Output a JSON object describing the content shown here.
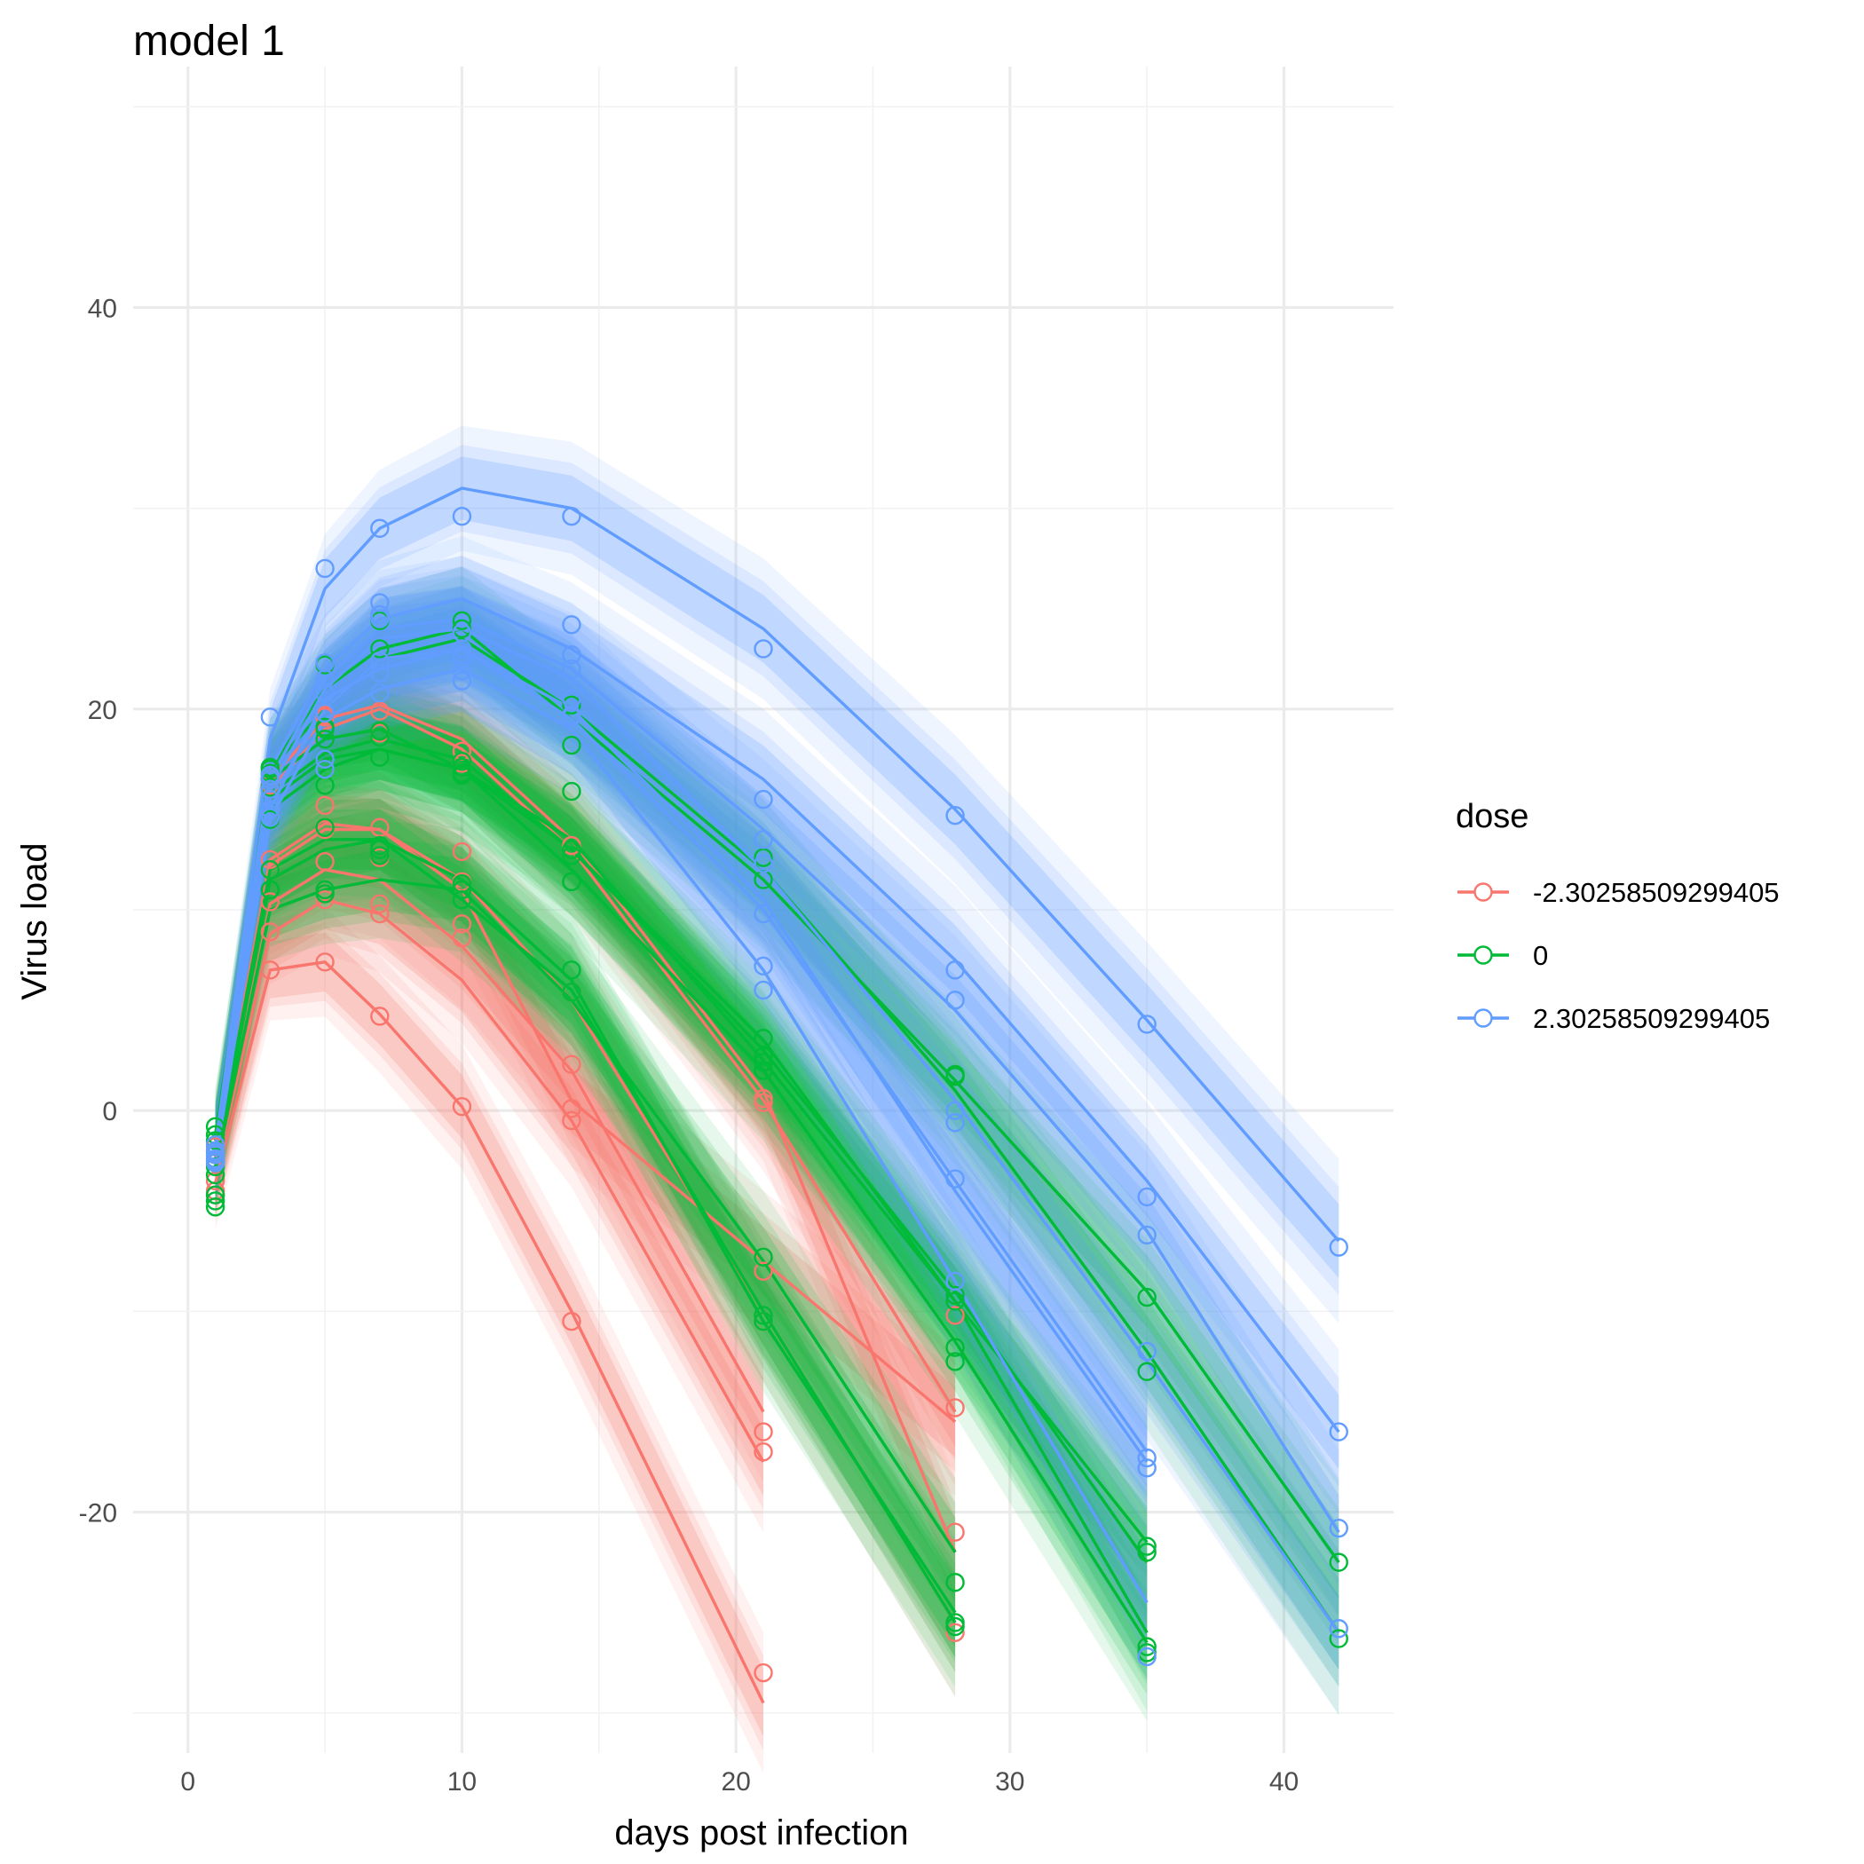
{
  "chart_data": {
    "type": "line",
    "title": "model 1",
    "xlabel": "days post infection",
    "ylabel": "Virus load",
    "xlim": [
      -2,
      44
    ],
    "ylim": [
      -32,
      52
    ],
    "x_ticks": [
      0,
      10,
      20,
      30,
      40
    ],
    "y_ticks": [
      -20,
      0,
      20,
      40
    ],
    "grid": true,
    "legend": {
      "title": "dose",
      "position": "right"
    },
    "days": [
      1,
      3,
      5,
      7,
      10,
      14,
      21,
      28,
      35,
      42
    ],
    "series": [
      {
        "name": "-2.30258509299405",
        "color": "#F8766D",
        "subjects": [
          {
            "fit": [
              -3.6,
              7.0,
              7.4,
              4.8,
              0.2,
              -10.0,
              -29.5
            ],
            "obs": [
              -4.2,
              7.0,
              7.4,
              4.7,
              0.2,
              -10.5,
              -28.0
            ]
          },
          {
            "fit": [
              -3.2,
              8.8,
              10.5,
              9.8,
              6.5,
              -0.5,
              -17.5
            ],
            "obs": [
              -4.0,
              8.9,
              10.5,
              9.8,
              8.6,
              -0.5,
              -17.0
            ]
          },
          {
            "fit": [
              -2.9,
              10.3,
              12.0,
              11.5,
              8.2,
              2.0,
              -15.0
            ],
            "obs": [
              -3.5,
              10.4,
              12.4,
              10.3,
              9.3,
              2.3,
              -16.0
            ]
          },
          {
            "fit": [
              -2.5,
              12.2,
              14.0,
              14.0,
              11.0,
              0.5,
              -7.5,
              -15.5
            ],
            "obs": [
              -2.0,
              12.0,
              14.0,
              14.1,
              12.9,
              0.1,
              -8.0,
              -14.8
            ]
          },
          {
            "fit": [
              -2.3,
              12.5,
              14.3,
              14.0,
              11.5,
              5.5,
              -10.0,
              -25.5
            ],
            "obs": [
              -2.5,
              12.5,
              15.2,
              12.6,
              11.4,
              5.9,
              -10.5,
              -26.0
            ]
          },
          {
            "fit": [
              -2.1,
              16.0,
              19.0,
              20.0,
              18.0,
              13.0,
              0.5,
              -15.0
            ],
            "obs": [
              -1.8,
              16.5,
              19.6,
              19.9,
              17.9,
              13.2,
              0.4,
              -10.2
            ]
          },
          {
            "fit": [
              -1.9,
              16.5,
              19.5,
              20.2,
              18.5,
              13.5,
              1.0,
              -22.0
            ],
            "obs": [
              -2.2,
              16.2,
              19.7,
              18.8,
              17.3,
              13.2,
              0.6,
              -21.0
            ]
          }
        ]
      },
      {
        "name": "0",
        "color": "#00BA38",
        "subjects": [
          {
            "fit": [
              -3.0,
              10.0,
              11.0,
              11.5,
              11.0,
              5.5,
              -7.5,
              -22.0
            ],
            "obs": [
              -4.8,
              11.0,
              10.8,
              12.7,
              11.0,
              5.9,
              -7.3,
              -23.5
            ]
          },
          {
            "fit": [
              -2.8,
              11.5,
              13.0,
              13.5,
              10.5,
              6.0,
              -10.0,
              -25.5
            ],
            "obs": [
              -4.5,
              11.0,
              11.0,
              13.2,
              10.5,
              7.0,
              -10.2,
              -25.5
            ]
          },
          {
            "fit": [
              -2.5,
              12.0,
              13.5,
              13.5,
              11.5,
              6.5,
              -10.5,
              -25.0
            ],
            "obs": [
              -4.2,
              12.0,
              14.1,
              13.0,
              11.3,
              11.4,
              -10.5,
              -25.7
            ]
          },
          {
            "fit": [
              -2.3,
              15.0,
              17.0,
              18.0,
              17.0,
              12.0,
              2.0,
              -11.5,
              -26.5
            ],
            "obs": [
              -2.8,
              14.5,
              16.2,
              17.6,
              16.8,
              11.4,
              2.0,
              -12.5,
              -27.0
            ]
          },
          {
            "fit": [
              -2.1,
              15.8,
              17.8,
              18.5,
              17.5,
              13.0,
              3.0,
              -9.0,
              -22.5
            ],
            "obs": [
              -3.2,
              16.1,
              17.0,
              18.6,
              17.1,
              13.0,
              2.4,
              -9.5,
              -22.0
            ]
          },
          {
            "fit": [
              -1.9,
              16.5,
              18.5,
              19.0,
              17.0,
              13.0,
              3.5,
              -9.5,
              -26.0
            ],
            "obs": [
              -1.5,
              16.8,
              18.5,
              18.9,
              17.4,
              12.7,
              3.6,
              -11.8,
              -26.7
            ]
          },
          {
            "fit": [
              -1.5,
              15.5,
              17.5,
              18.0,
              17.0,
              13.5,
              2.5,
              -9.5,
              -21.5
            ],
            "obs": [
              -2.6,
              16.5,
              19.1,
              18.9,
              16.7,
              15.9,
              2.7,
              -9.2,
              -21.7
            ]
          },
          {
            "fit": [
              -1.3,
              17.0,
              21.0,
              23.0,
              24.0,
              19.5,
              11.5,
              1.5,
              -9.0,
              -22.5
            ],
            "obs": [
              -0.8,
              17.0,
              22.2,
              23.0,
              24.4,
              18.2,
              11.5,
              1.7,
              -9.3,
              -22.5
            ]
          },
          {
            "fit": [
              -1.2,
              17.0,
              20.0,
              22.5,
              23.5,
              20.0,
              12.0,
              1.0,
              -12.0,
              -26.0
            ],
            "obs": [
              -1.2,
              17.1,
              19.0,
              24.4,
              24.0,
              20.2,
              12.6,
              1.8,
              -13.0,
              -26.3
            ]
          }
        ]
      },
      {
        "name": "2.30258509299405",
        "color": "#619CFF",
        "subjects": [
          {
            "fit": [
              -1.8,
              18.5,
              26.0,
              29.0,
              31.0,
              30.0,
              24.0,
              15.0,
              4.5,
              -6.5
            ],
            "obs": [
              -1.7,
              19.6,
              27.0,
              29.0,
              29.6,
              29.6,
              23.0,
              14.7,
              4.3,
              -6.8
            ]
          },
          {
            "fit": [
              -2.0,
              17.0,
              22.0,
              24.5,
              25.5,
              23.0,
              16.5,
              7.5,
              -3.5,
              -16.0
            ],
            "obs": [
              -2.0,
              16.7,
              22.3,
              25.3,
              23.8,
              24.2,
              15.5,
              7.0,
              -4.3,
              -16.0
            ]
          },
          {
            "fit": [
              -2.1,
              16.5,
              21.5,
              24.0,
              24.5,
              22.0,
              14.0,
              5.0,
              -6.0,
              -21.0
            ],
            "obs": [
              -2.2,
              16.5,
              21.5,
              24.5,
              23.0,
              22.7,
              13.5,
              5.5,
              -6.2,
              -20.8
            ]
          },
          {
            "fit": [
              -2.2,
              16.0,
              21.0,
              23.5,
              24.0,
              21.5,
              12.0,
              0.5,
              -12.5,
              -26.0
            ],
            "obs": [
              -2.1,
              16.0,
              20.8,
              24.7,
              22.7,
              22.0,
              12.3,
              0.0,
              -12.0,
              -25.8
            ]
          },
          {
            "fit": [
              -2.3,
              15.5,
              20.0,
              22.5,
              23.0,
              19.5,
              10.0,
              -3.5,
              -17.0
            ],
            "obs": [
              -2.4,
              15.5,
              19.8,
              22.4,
              21.9,
              20.5,
              7.2,
              -3.4,
              -17.3
            ]
          },
          {
            "fit": [
              -2.4,
              15.0,
              20.5,
              22.0,
              23.0,
              20.0,
              10.5,
              -4.0,
              -17.5
            ],
            "obs": [
              -2.5,
              15.0,
              17.5,
              21.8,
              22.5,
              19.6,
              9.8,
              -0.6,
              -17.8
            ]
          },
          {
            "fit": [
              -2.6,
              14.5,
              19.5,
              21.0,
              22.0,
              19.0,
              7.0,
              -8.5,
              -24.5
            ],
            "obs": [
              -2.6,
              14.6,
              17.0,
              20.8,
              21.4,
              19.7,
              6.0,
              -8.5,
              -27.2
            ]
          }
        ]
      }
    ]
  }
}
